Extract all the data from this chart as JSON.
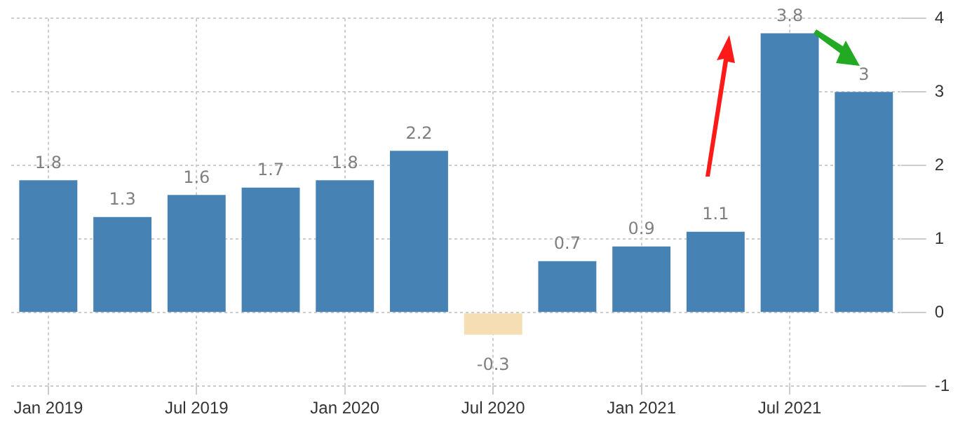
{
  "chart_data": {
    "type": "bar",
    "categories": [
      "Jan 2019",
      null,
      "Jul 2019",
      null,
      "Jan 2020",
      null,
      "Jul 2020",
      null,
      "Jan 2021",
      null,
      "Jul 2021",
      null
    ],
    "values": [
      1.8,
      1.3,
      1.6,
      1.7,
      1.8,
      2.2,
      -0.3,
      0.7,
      0.9,
      1.1,
      3.8,
      3
    ],
    "colors": [
      "#4682b4",
      "#4682b4",
      "#4682b4",
      "#4682b4",
      "#4682b4",
      "#4682b4",
      "#f5deb3",
      "#4682b4",
      "#4682b4",
      "#4682b4",
      "#4682b4",
      "#4682b4"
    ],
    "ylim": [
      -1,
      4
    ],
    "yticks": [
      -1,
      0,
      1,
      2,
      3,
      4
    ],
    "grid": true,
    "data_labels": true,
    "legend": false
  }
}
